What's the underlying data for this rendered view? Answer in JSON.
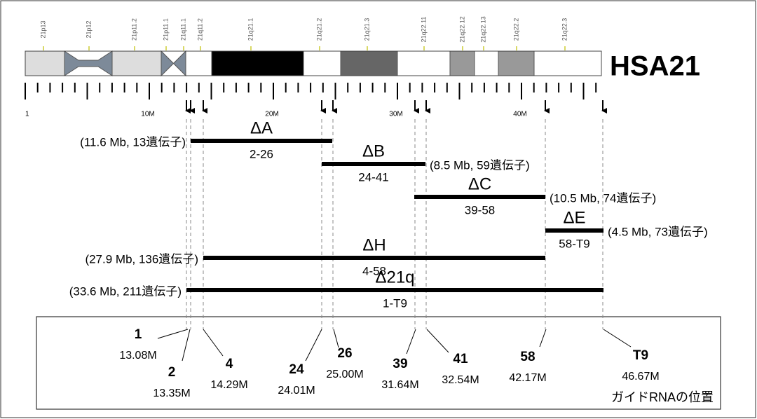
{
  "ideogram": {
    "name": "HSA21",
    "bands": [
      "21p13",
      "21p12",
      "21p11.2",
      "21p11.1",
      "21q11.1",
      "21q11.2",
      "21q21.1",
      "21q21.2",
      "21q21.3",
      "21q22.11",
      "21q22.12",
      "21q22.13",
      "21q22.2",
      "21q22.3"
    ]
  },
  "scale": {
    "labels": [
      "1",
      "10M",
      "20M",
      "30M",
      "40M"
    ]
  },
  "deletions": [
    {
      "name": "ΔA",
      "range": "2-26",
      "info": "(11.6 Mb, 13遺伝子)"
    },
    {
      "name": "ΔB",
      "range": "24-41",
      "info": "(8.5 Mb, 59遺伝子)"
    },
    {
      "name": "ΔC",
      "range": "39-58",
      "info": "(10.5 Mb, 74遺伝子)"
    },
    {
      "name": "ΔE",
      "range": "58-T9",
      "info": "(4.5 Mb, 73遺伝子)"
    },
    {
      "name": "ΔH",
      "range": "4-58",
      "info": "(27.9 Mb, 136遺伝子)"
    },
    {
      "name": "Δ21q",
      "range": "1-T9",
      "info": "(33.6 Mb, 211遺伝子)"
    }
  ],
  "guides": {
    "items": [
      {
        "id": "1",
        "position": "13.08M"
      },
      {
        "id": "2",
        "position": "13.35M"
      },
      {
        "id": "4",
        "position": "14.29M"
      },
      {
        "id": "24",
        "position": "24.01M"
      },
      {
        "id": "26",
        "position": "25.00M"
      },
      {
        "id": "39",
        "position": "31.64M"
      },
      {
        "id": "41",
        "position": "32.54M"
      },
      {
        "id": "58",
        "position": "42.17M"
      },
      {
        "id": "T9",
        "position": "46.67M"
      }
    ],
    "caption": "ガイドRNAの位置"
  }
}
